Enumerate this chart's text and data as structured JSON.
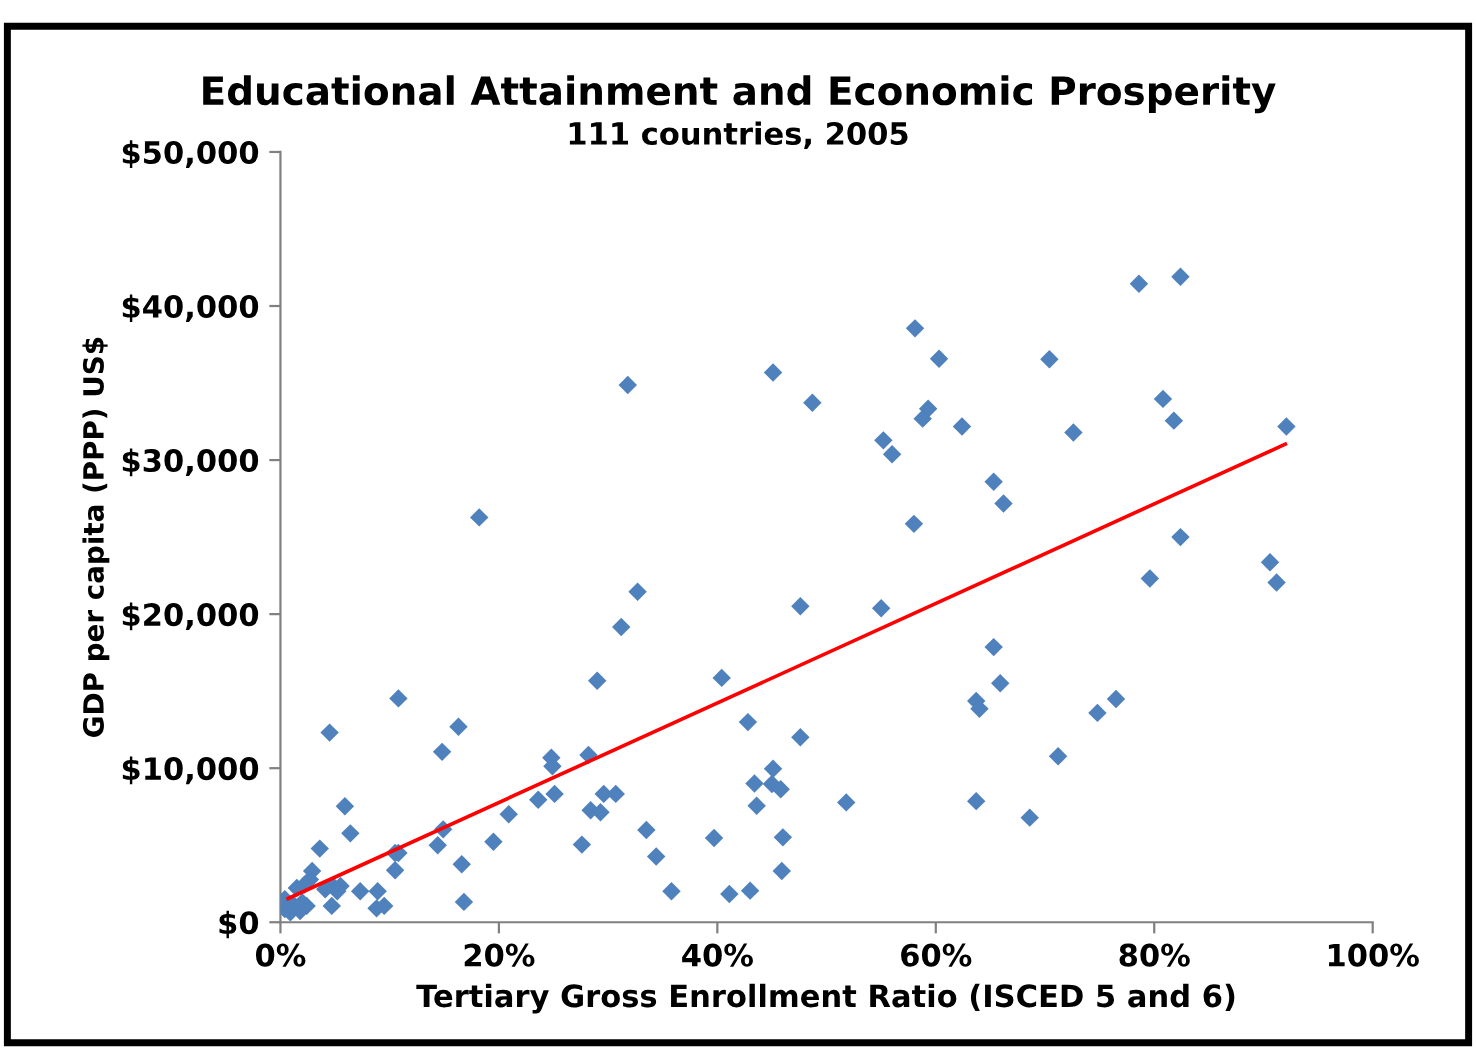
{
  "chart_data": {
    "type": "scatter",
    "title": "Educational Attainment and Economic Prosperity",
    "subtitle": "111 countries, 2005",
    "xlabel": "Tertiary Gross Enrollment Ratio (ISCED 5 and 6)",
    "ylabel": "GDP per capita (PPP) US$",
    "xlim": [
      0,
      100
    ],
    "ylim": [
      0,
      50000
    ],
    "xticks": [
      {
        "value": 0,
        "label": "0%"
      },
      {
        "value": 20,
        "label": "20%"
      },
      {
        "value": 40,
        "label": "40%"
      },
      {
        "value": 60,
        "label": "60%"
      },
      {
        "value": 80,
        "label": "80%"
      },
      {
        "value": 100,
        "label": "100%"
      }
    ],
    "yticks": [
      {
        "value": 0,
        "label": "$0"
      },
      {
        "value": 10000,
        "label": "$10,000"
      },
      {
        "value": 20000,
        "label": "$20,000"
      },
      {
        "value": 30000,
        "label": "$30,000"
      },
      {
        "value": 40000,
        "label": "$40,000"
      },
      {
        "value": 50000,
        "label": "$50,000"
      }
    ],
    "grid": false,
    "legend": false,
    "marker": "diamond",
    "series": [
      {
        "color": "#4f81bd",
        "x": [
          82.4,
          78.6,
          58.1,
          60.3,
          70.4,
          45.1,
          31.8,
          80.8,
          48.7,
          59.3,
          58.8,
          62.4,
          81.8,
          92.1,
          72.6,
          55.2,
          56.0,
          65.3,
          66.2,
          18.2,
          58.0,
          82.4,
          79.6,
          90.6,
          91.2,
          32.7,
          47.6,
          55.0,
          31.2,
          40.4,
          29.0,
          65.3,
          10.8,
          65.9,
          63.7,
          64.0,
          76.5,
          74.8,
          42.8,
          16.3,
          4.5,
          47.6,
          14.8,
          71.2,
          24.8,
          24.9,
          28.2,
          45.1,
          43.4,
          45.0,
          45.8,
          29.6,
          30.7,
          25.1,
          23.6,
          63.7,
          51.8,
          43.6,
          5.9,
          20.9,
          28.4,
          29.3,
          68.6,
          19.5,
          14.9,
          14.4,
          6.4,
          33.5,
          39.7,
          46.0,
          27.6,
          3.6,
          10.5,
          10.8,
          16.6,
          10.5,
          34.4,
          45.9,
          2.9,
          2.7,
          4.8,
          5.5,
          5.2,
          4.1,
          1.5,
          2.2,
          7.3,
          8.9,
          9.5,
          8.8,
          4.7,
          16.8,
          35.8,
          41.1,
          43.0,
          0.4,
          0.4,
          1.3,
          1.8,
          2.4,
          0.9,
          2.0
        ],
        "values": [
          41900,
          41450,
          38550,
          36580,
          36540,
          35680,
          34870,
          33970,
          33720,
          33330,
          32690,
          32180,
          32560,
          32180,
          31790,
          31280,
          30380,
          28590,
          27180,
          26280,
          25860,
          25000,
          22310,
          23370,
          22050,
          21450,
          20510,
          20380,
          19170,
          15860,
          15680,
          17860,
          14530,
          15510,
          14360,
          13850,
          14490,
          13590,
          12990,
          12690,
          12310,
          12010,
          11060,
          10770,
          10680,
          10130,
          10860,
          9960,
          9010,
          8970,
          8630,
          8330,
          8330,
          8330,
          7950,
          7860,
          7780,
          7560,
          7530,
          7010,
          7270,
          7140,
          6790,
          5220,
          6030,
          5000,
          5770,
          5990,
          5470,
          5510,
          5040,
          4780,
          4490,
          4490,
          3760,
          3370,
          4270,
          3330,
          3330,
          2780,
          2350,
          2350,
          2010,
          2140,
          2220,
          2440,
          2010,
          2010,
          1060,
          900,
          1060,
          1320,
          2010,
          1830,
          2050,
          1500,
          860,
          1060,
          730,
          1060,
          640,
          1280
        ]
      },
      {
        "type": "line",
        "color": "#ff0000",
        "marker": "none",
        "x": [
          0.7,
          92.0
        ],
        "values": [
          1540,
          31030
        ]
      }
    ]
  }
}
